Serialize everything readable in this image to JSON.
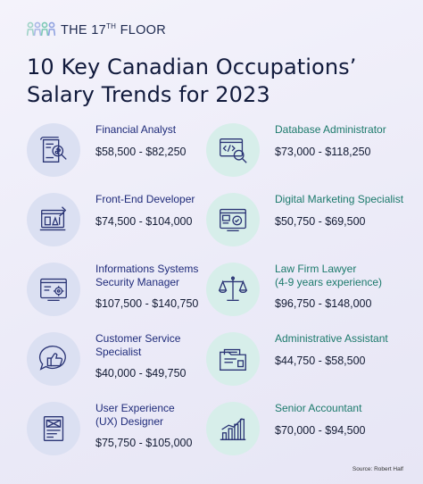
{
  "brand": {
    "name_prefix": "THE 17",
    "name_sup": "TH",
    "name_suffix": " FLOOR"
  },
  "title_line1": "10 Key Canadian Occupations’",
  "title_line2": "Salary Trends for 2023",
  "occupations_left": [
    {
      "title": [
        "Financial Analyst"
      ],
      "salary": "$58,500 - $82,250",
      "icon": "financial-document-icon"
    },
    {
      "title": [
        "Front-End Developer"
      ],
      "salary": "$74,500 - $104,000",
      "icon": "web-development-icon"
    },
    {
      "title": [
        "Informations Systems",
        "Security Manager"
      ],
      "salary": "$107,500 - $140,750",
      "icon": "security-settings-icon"
    },
    {
      "title": [
        "Customer Service",
        "Specialist"
      ],
      "salary": "$40,000 - $49,750",
      "icon": "thumbs-up-chat-icon"
    },
    {
      "title": [
        "User Experience",
        "(UX) Designer"
      ],
      "salary": "$75,750 - $105,000",
      "icon": "wireframe-icon"
    }
  ],
  "occupations_right": [
    {
      "title": [
        "Database Administrator"
      ],
      "salary": "$73,000 - $118,250",
      "icon": "code-search-icon"
    },
    {
      "title": [
        "Digital Marketing Specialist"
      ],
      "salary": "$50,750 - $69,500",
      "icon": "seo-browser-icon"
    },
    {
      "title": [
        "Law Firm Lawyer",
        "(4-9 years experience)"
      ],
      "salary": "$96,750 - $148,000",
      "icon": "scales-of-justice-icon"
    },
    {
      "title": [
        "Administrative Assistant"
      ],
      "salary": "$44,750 - $58,500",
      "icon": "folder-documents-icon"
    },
    {
      "title": [
        "Senior Accountant"
      ],
      "salary": "$70,000 - $94,500",
      "icon": "bar-chart-icon"
    }
  ],
  "source": "Source: Robert Half",
  "colors": {
    "title": "#111a3c",
    "left_label": "#1f2b7a",
    "right_label": "#1c7a6c",
    "left_circle": "#dbe0f2",
    "right_circle": "#d7eeea"
  }
}
